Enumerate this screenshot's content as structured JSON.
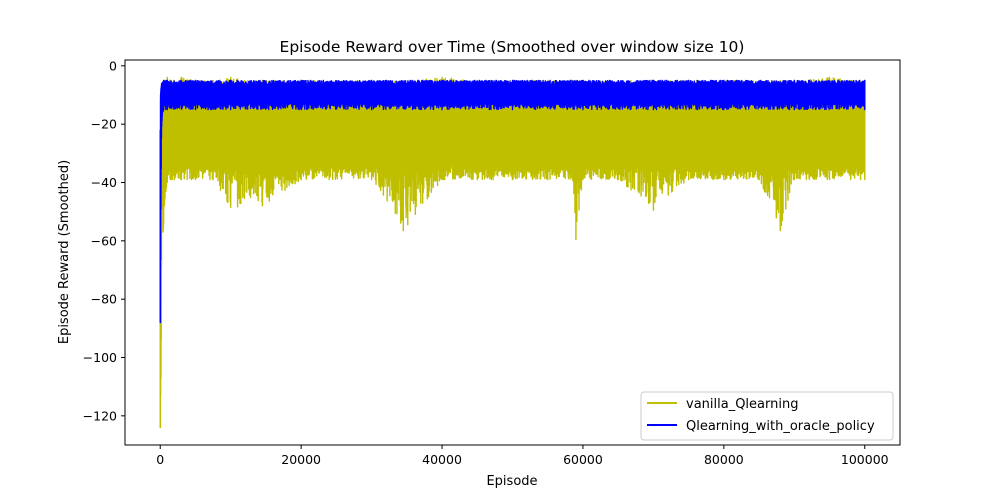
{
  "chart_data": {
    "type": "line",
    "title": "Episode Reward over Time (Smoothed over window size 10)",
    "xlabel": "Episode",
    "ylabel": "Episode Reward (Smoothed)",
    "xlim": [
      -5000,
      105000
    ],
    "ylim": [
      -130,
      2
    ],
    "xticks": [
      0,
      20000,
      40000,
      60000,
      80000,
      100000
    ],
    "yticks": [
      0,
      -20,
      -40,
      -60,
      -80,
      -100,
      -120
    ],
    "grid": false,
    "legend_position": "lower-right",
    "series": [
      {
        "name": "vanilla_Qlearning",
        "color": "#bfbf00",
        "x": [
          0,
          50,
          100,
          150,
          200,
          300,
          400,
          600,
          800,
          1000,
          1500,
          2000,
          3000,
          5000,
          7500,
          10000,
          14500,
          20000,
          30000,
          34500,
          40000,
          45000,
          47000,
          50000,
          55000,
          58500,
          59000,
          60000,
          65000,
          70000,
          75000,
          80000,
          85000,
          88000,
          90000,
          95000,
          98000,
          100000
        ],
        "upper": [
          -88,
          -60,
          -40,
          -25,
          -18,
          -12,
          -8,
          -5,
          -5,
          -4,
          -5,
          -5,
          -4,
          -5,
          -5,
          -4,
          -5,
          -5,
          -5,
          -5,
          -4,
          -5,
          -5,
          -5,
          -5,
          -5,
          -5,
          -5,
          -5,
          -5,
          -5,
          -5,
          -5,
          -5,
          -5,
          -4,
          -5,
          -5
        ],
        "lower": [
          -124,
          -110,
          -105,
          -70,
          -45,
          -42,
          -57,
          -48,
          -43,
          -40,
          -39,
          -39,
          -39,
          -39,
          -39,
          -48.5,
          -48,
          -39,
          -39,
          -56.5,
          -39,
          -39,
          -39,
          -39,
          -39,
          -39,
          -59.5,
          -39,
          -39,
          -49.5,
          -39,
          -39,
          -39,
          -56.5,
          -39,
          -39,
          -39,
          -39
        ],
        "typical_band": [
          -35,
          -13
        ]
      },
      {
        "name": "Qlearning_with_oracle_policy",
        "color": "#0000ff",
        "x": [
          0,
          50,
          100,
          150,
          200,
          300,
          500,
          1000,
          5000,
          10000,
          20000,
          30000,
          40000,
          50000,
          60000,
          70000,
          80000,
          90000,
          100000
        ],
        "upper": [
          -22,
          -10,
          -8,
          -7,
          -6,
          -6,
          -5,
          -5,
          -5,
          -5,
          -5,
          -5,
          -5,
          -5,
          -5,
          -5,
          -5,
          -5,
          -5
        ],
        "lower": [
          -88,
          -60,
          -40,
          -25,
          -20,
          -16,
          -15,
          -15,
          -15,
          -15,
          -15,
          -15,
          -15,
          -15,
          -15,
          -15,
          -15,
          -15,
          -15
        ],
        "typical_band": [
          -13,
          -7
        ]
      }
    ]
  }
}
